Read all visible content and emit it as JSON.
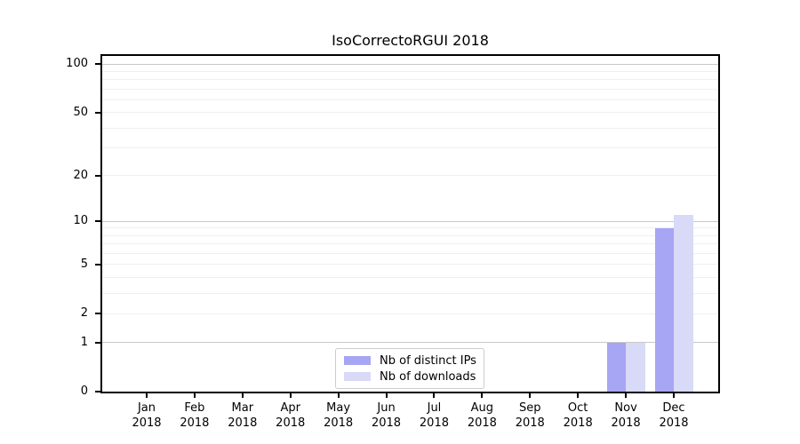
{
  "chart_data": {
    "type": "bar",
    "title": "IsoCorrectoRGUI 2018",
    "x_tick_year": "2018",
    "x_tick_months": [
      "Jan",
      "Feb",
      "Mar",
      "Apr",
      "May",
      "Jun",
      "Jul",
      "Aug",
      "Sep",
      "Oct",
      "Nov",
      "Dec"
    ],
    "categories": [
      "Jan 2018",
      "Feb 2018",
      "Mar 2018",
      "Apr 2018",
      "May 2018",
      "Jun 2018",
      "Jul 2018",
      "Aug 2018",
      "Sep 2018",
      "Oct 2018",
      "Nov 2018",
      "Dec 2018"
    ],
    "series": [
      {
        "name": "Nb of distinct IPs",
        "color": "#a6a6f4",
        "values": [
          0,
          0,
          0,
          0,
          0,
          0,
          0,
          0,
          0,
          0,
          1,
          9
        ]
      },
      {
        "name": "Nb of downloads",
        "color": "#d9d9f8",
        "values": [
          0,
          0,
          0,
          0,
          0,
          0,
          0,
          0,
          0,
          0,
          1,
          11
        ]
      }
    ],
    "y_axis": {
      "scale": "log1p",
      "ticks": [
        0,
        1,
        2,
        5,
        10,
        20,
        50,
        100
      ],
      "tick_labels": [
        "0",
        "1",
        "2",
        "5",
        "10",
        "20",
        "50",
        "100"
      ],
      "major_grid": [
        1,
        10,
        100
      ],
      "minor_grid": [
        2,
        3,
        4,
        5,
        6,
        7,
        8,
        9,
        20,
        30,
        40,
        50,
        60,
        70,
        80,
        90
      ],
      "range": [
        0,
        113
      ]
    },
    "xlabel": "",
    "ylabel": "",
    "grid": "on",
    "legend_position": "lower center",
    "colors": {
      "major_grid": "#c9c9c9",
      "minor_grid": "#efefef",
      "spine": "#000000",
      "background": "#ffffff"
    }
  }
}
